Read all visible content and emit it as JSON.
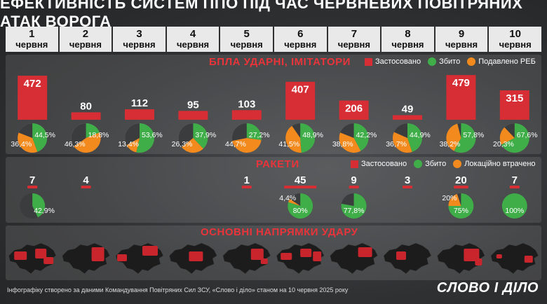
{
  "title": "ЕФЕКТИВНІСТЬ СИСТЕМ ППО ПІД ЧАС ЧЕРВНЕВИХ ПОВІТРЯНИХ АТАК ВОРОГА",
  "days": [
    {
      "n": "1",
      "m": "червня"
    },
    {
      "n": "2",
      "m": "червня"
    },
    {
      "n": "3",
      "m": "червня"
    },
    {
      "n": "4",
      "m": "червня"
    },
    {
      "n": "5",
      "m": "червня"
    },
    {
      "n": "6",
      "m": "червня"
    },
    {
      "n": "7",
      "m": "червня"
    },
    {
      "n": "8",
      "m": "червня"
    },
    {
      "n": "9",
      "m": "червня"
    },
    {
      "n": "10",
      "m": "червня"
    }
  ],
  "drones": {
    "title": "БПЛА УДАРНІ, ІМІТАТОРИ",
    "legend": {
      "used": "Застосовано",
      "shot": "Збито",
      "ew": "Подавлено РЕБ"
    }
  },
  "missiles": {
    "title": "РАКЕТИ",
    "legend": {
      "used": "Застосовано",
      "shot": "Збито",
      "lost": "Локаційно втрачено"
    }
  },
  "directions": {
    "title": "ОСНОВНІ НАПРЯМКИ УДАРУ"
  },
  "footer": "Інфографіку створено за даними Командування Повітряних Сил ЗСУ, «Слово і діло» станом на 10 червня 2025 року",
  "brand": "СЛОВО І ДІЛО",
  "colors": {
    "used": "#d62e34",
    "shot": "#3fae49",
    "ew": "#f28a1e",
    "lost": "#f28a1e",
    "map_base": "#1c1c1c",
    "map_hit": "#c8262c"
  },
  "chart_data": [
    {
      "type": "bar",
      "title": "БПЛА УДАРНІ, ІМІТАТОРИ",
      "categories": [
        "1 червня",
        "2 червня",
        "3 червня",
        "4 червня",
        "5 червня",
        "6 червня",
        "7 червня",
        "8 червня",
        "9 червня",
        "10 червня"
      ],
      "series": [
        {
          "name": "Застосовано",
          "values": [
            472,
            80,
            112,
            95,
            103,
            407,
            206,
            49,
            479,
            315
          ]
        }
      ],
      "labels": [
        "472",
        "80",
        "112",
        "95",
        "103",
        "407",
        "206",
        "49",
        "479",
        "315"
      ],
      "ylim": [
        0,
        480
      ]
    },
    {
      "type": "pie",
      "title": "БПЛА",
      "categories": [
        "1 червня",
        "2 червня",
        "3 червня",
        "4 червня",
        "5 червня",
        "6 червня",
        "7 червня",
        "8 червня",
        "9 червня",
        "10 червня"
      ],
      "series": [
        {
          "name": "Збито",
          "values": [
            44.5,
            18.8,
            53.6,
            37.9,
            27.2,
            48.9,
            42.2,
            44.9,
            57.8,
            67.6
          ],
          "labels": [
            "44,5%",
            "18,8%",
            "53,6%",
            "37,9%",
            "27,2%",
            "48,9%",
            "42,2%",
            "44,9%",
            "57,8%",
            "67,6%"
          ]
        },
        {
          "name": "Подавлено РЕБ",
          "values": [
            36.4,
            46.3,
            13.4,
            26.3,
            44.7,
            41.5,
            38.8,
            36.7,
            38.2,
            20.3
          ],
          "labels": [
            "36,4%",
            "46,3%",
            "13,4%",
            "26,3%",
            "44,7%",
            "41,5%",
            "38,8%",
            "36,7%",
            "38,2%",
            "20,3%"
          ]
        }
      ]
    },
    {
      "type": "bar",
      "title": "РАКЕТИ",
      "categories": [
        "1 червня",
        "2 червня",
        "3 червня",
        "4 червня",
        "5 червня",
        "6 червня",
        "7 червня",
        "8 червня",
        "9 червня",
        "10 червня"
      ],
      "series": [
        {
          "name": "Застосовано",
          "values": [
            7,
            4,
            null,
            null,
            1,
            45,
            9,
            3,
            20,
            7
          ]
        }
      ],
      "labels": [
        "7",
        "4",
        "",
        "",
        "1",
        "45",
        "9",
        "3",
        "20",
        "7"
      ],
      "ylim": [
        0,
        45
      ]
    },
    {
      "type": "pie",
      "title": "РАКЕТИ",
      "categories": [
        "1 червня",
        "2 червня",
        "3 червня",
        "4 червня",
        "5 червня",
        "6 червня",
        "7 червня",
        "8 червня",
        "9 червня",
        "10 червня"
      ],
      "series": [
        {
          "name": "Збито",
          "values": [
            42.9,
            null,
            null,
            null,
            null,
            80,
            77.8,
            null,
            75,
            100
          ],
          "labels": [
            "42,9%",
            "",
            "",
            "",
            "",
            "80%",
            "77,8%",
            "",
            "75%",
            "100%"
          ]
        },
        {
          "name": "Локаційно втрачено",
          "values": [
            null,
            null,
            null,
            null,
            null,
            4.4,
            null,
            null,
            20,
            null
          ],
          "labels": [
            "",
            "",
            "",
            "",
            "",
            "4,4%",
            "",
            "",
            "20%",
            ""
          ]
        }
      ]
    }
  ]
}
